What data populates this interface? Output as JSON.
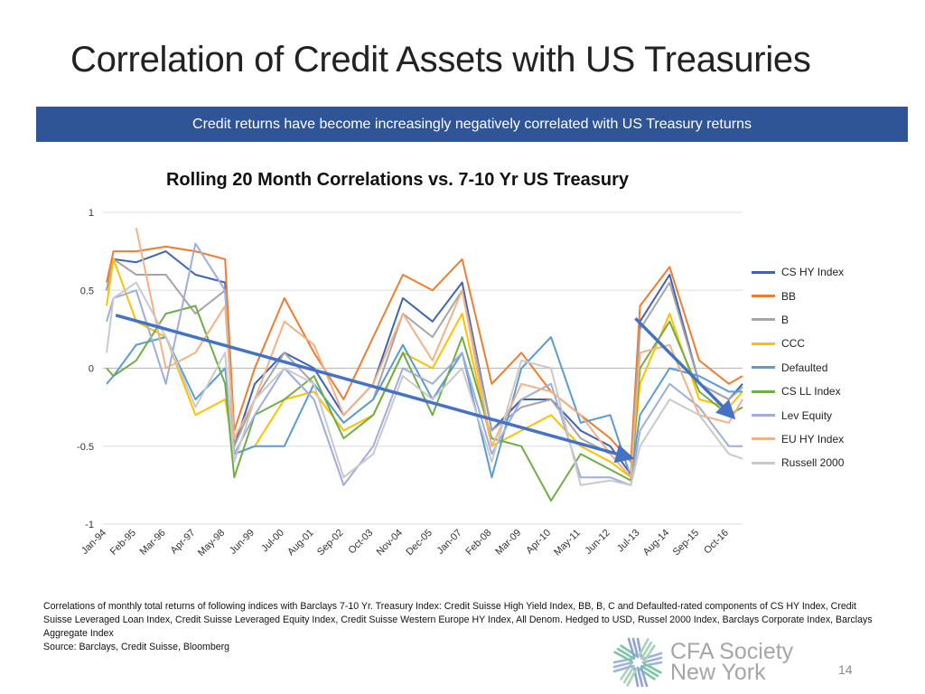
{
  "slide": {
    "title": "Correlation of Credit Assets with US Treasuries",
    "banner": "Credit returns have become increasingly negatively correlated with US Treasury returns",
    "footnote": "Correlations of monthly total returns of following indices with Barclays 7-10 Yr. Treasury Index: Credit Suisse High Yield Index, BB, B, C and Defaulted-rated components of CS HY Index, Credit Suisse Leveraged Loan Index, Credit Suisse Leveraged Equity Index, Credit Suisse Western Europe HY Index, All Denom. Hedged to USD, Russel 2000 Index, Barclays Corporate Index, Barclays Aggregate Index",
    "source": "Source: Barclays, Credit Suisse, Bloomberg",
    "logo_line1": "CFA Society",
    "logo_line2": "New York",
    "page_number": "14"
  },
  "chart_data": {
    "type": "line",
    "title": "Rolling 20 Month Correlations vs. 7-10 Yr US Treasury",
    "ylim": [
      -1,
      1
    ],
    "yticks": [
      "1",
      "0.5",
      "0",
      "-0.5",
      "-1"
    ],
    "ytick_values": [
      1,
      0.5,
      0,
      -0.5,
      -1
    ],
    "xticks": [
      "Jan-94",
      "Feb-95",
      "Mar-96",
      "Apr-97",
      "May-98",
      "Jun-99",
      "Jul-00",
      "Aug-01",
      "Sep-02",
      "Oct-03",
      "Nov-04",
      "Dec-05",
      "Jan-07",
      "Feb-08",
      "Mar-09",
      "Apr-10",
      "May-11",
      "Jun-12",
      "Jul-13",
      "Aug-14",
      "Sep-15",
      "Oct-16"
    ],
    "xrange": [
      "1994-01",
      "2017-04"
    ],
    "grid": true,
    "legend_position": "right",
    "x": [
      "1994-01",
      "1994-04",
      "1995-02",
      "1996-03",
      "1997-04",
      "1998-05",
      "1998-09",
      "1999-06",
      "2000-07",
      "2001-08",
      "2002-09",
      "2003-10",
      "2004-11",
      "2005-12",
      "2007-01",
      "2008-02",
      "2009-03",
      "2010-04",
      "2011-05",
      "2012-06",
      "2013-03",
      "2013-07",
      "2014-08",
      "2015-09",
      "2016-10",
      "2017-04"
    ],
    "series": [
      {
        "name": "CS HY Index",
        "color": "#3F62B5",
        "values": [
          0.5,
          0.7,
          0.68,
          0.75,
          0.6,
          0.55,
          -0.5,
          -0.1,
          0.1,
          0.0,
          -0.3,
          -0.1,
          0.45,
          0.3,
          0.55,
          -0.4,
          -0.2,
          -0.2,
          -0.4,
          -0.5,
          -0.68,
          0.3,
          0.6,
          -0.1,
          -0.2,
          -0.1
        ]
      },
      {
        "name": "BB",
        "color": "#ED7D31",
        "values": [
          0.55,
          0.75,
          0.75,
          0.78,
          0.75,
          0.7,
          -0.4,
          0.0,
          0.45,
          0.1,
          -0.2,
          0.2,
          0.6,
          0.5,
          0.7,
          -0.1,
          0.1,
          -0.15,
          -0.3,
          -0.45,
          -0.6,
          0.4,
          0.65,
          0.05,
          -0.1,
          -0.05
        ]
      },
      {
        "name": "B",
        "color": "#A5A5A5",
        "values": [
          0.5,
          0.7,
          0.6,
          0.6,
          0.35,
          0.5,
          -0.5,
          -0.2,
          0.1,
          -0.1,
          -0.35,
          -0.2,
          0.35,
          0.2,
          0.5,
          -0.4,
          -0.25,
          -0.2,
          -0.45,
          -0.55,
          -0.7,
          0.25,
          0.55,
          -0.1,
          -0.2,
          -0.12
        ]
      },
      {
        "name": "CCC",
        "color": "#FFC000",
        "values": [
          0.4,
          0.7,
          0.3,
          0.2,
          -0.3,
          -0.2,
          -0.55,
          -0.5,
          -0.2,
          -0.15,
          -0.4,
          -0.3,
          0.1,
          0.0,
          0.35,
          -0.5,
          -0.4,
          -0.3,
          -0.5,
          -0.6,
          -0.7,
          -0.1,
          0.35,
          -0.2,
          -0.25,
          -0.15
        ]
      },
      {
        "name": "Defaulted",
        "color": "#5B9BD5",
        "values": [
          -0.1,
          -0.05,
          0.15,
          0.2,
          -0.2,
          0.0,
          -0.55,
          -0.5,
          -0.5,
          -0.1,
          -0.35,
          -0.2,
          0.15,
          -0.2,
          0.1,
          -0.7,
          0.0,
          0.2,
          -0.35,
          -0.3,
          -0.7,
          -0.3,
          0.0,
          -0.05,
          -0.15,
          -0.15
        ]
      },
      {
        "name": "CS LL Index",
        "color": "#70AD47",
        "values": [
          0.0,
          -0.05,
          0.05,
          0.35,
          0.4,
          -0.1,
          -0.7,
          -0.3,
          -0.2,
          -0.05,
          -0.45,
          -0.3,
          0.1,
          -0.3,
          0.2,
          -0.45,
          -0.5,
          -0.85,
          -0.55,
          -0.65,
          -0.72,
          0.0,
          0.3,
          -0.15,
          -0.3,
          -0.25
        ]
      },
      {
        "name": "Lev Equity",
        "color": "#9EADDC",
        "values": [
          0.3,
          0.45,
          0.5,
          -0.1,
          0.8,
          0.5,
          -0.55,
          -0.3,
          0.0,
          -0.2,
          -0.75,
          -0.5,
          0.0,
          -0.1,
          0.1,
          -0.55,
          -0.2,
          -0.1,
          -0.7,
          -0.7,
          -0.75,
          -0.4,
          -0.1,
          -0.25,
          -0.5,
          -0.5
        ]
      },
      {
        "name": "EU HY Index",
        "color": "#F4B183",
        "values": [
          null,
          null,
          0.9,
          0.0,
          0.1,
          0.4,
          -0.45,
          -0.2,
          0.3,
          0.15,
          -0.3,
          -0.1,
          0.35,
          0.05,
          0.5,
          -0.5,
          -0.1,
          -0.15,
          -0.3,
          -0.55,
          -0.7,
          0.1,
          0.15,
          -0.3,
          -0.35,
          -0.2
        ]
      },
      {
        "name": "Russell 2000",
        "color": "#C9C9C9",
        "values": [
          0.1,
          0.45,
          0.55,
          0.2,
          -0.25,
          0.1,
          -0.6,
          -0.2,
          0.0,
          -0.1,
          -0.7,
          -0.55,
          -0.05,
          -0.2,
          0.0,
          -0.6,
          0.05,
          0.0,
          -0.75,
          -0.72,
          -0.75,
          -0.5,
          -0.2,
          -0.3,
          -0.55,
          -0.58
        ]
      }
    ],
    "annotations": [
      {
        "type": "arrow",
        "color": "#4472C4",
        "from": [
          "1994-05",
          0.34
        ],
        "to": [
          "2013-02",
          -0.57
        ]
      },
      {
        "type": "arrow",
        "color": "#4472C4",
        "from": [
          "2013-05",
          0.32
        ],
        "to": [
          "2016-11",
          -0.3
        ]
      }
    ]
  }
}
